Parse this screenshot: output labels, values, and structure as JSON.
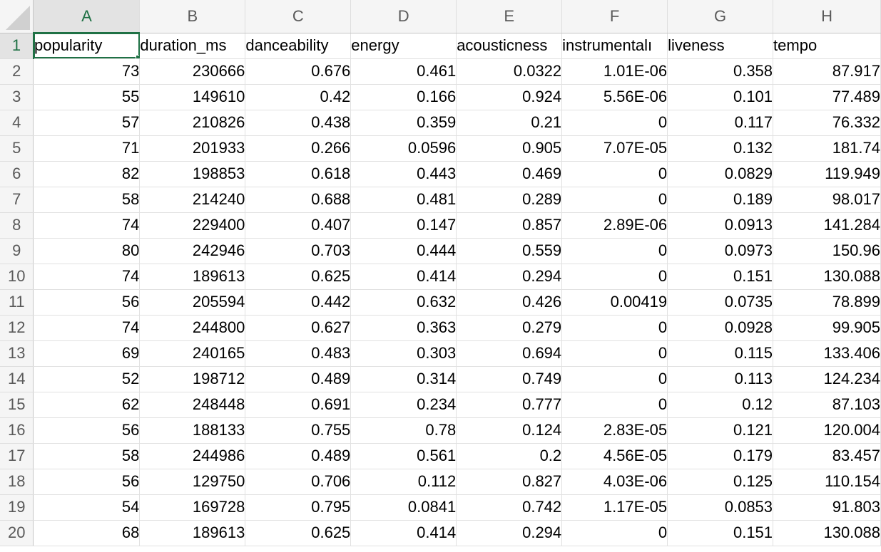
{
  "spreadsheet": {
    "active_cell": "A1",
    "columns": [
      "A",
      "B",
      "C",
      "D",
      "E",
      "F",
      "G",
      "H"
    ],
    "header_row": [
      "popularity",
      "duration_ms",
      "danceability",
      "energy",
      "acousticness",
      "instrumentalı",
      "liveness",
      "tempo"
    ],
    "rows": [
      [
        "2",
        "73",
        "230666",
        "0.676",
        "0.461",
        "0.0322",
        "1.01E-06",
        "0.358",
        "87.917"
      ],
      [
        "3",
        "55",
        "149610",
        "0.42",
        "0.166",
        "0.924",
        "5.56E-06",
        "0.101",
        "77.489"
      ],
      [
        "4",
        "57",
        "210826",
        "0.438",
        "0.359",
        "0.21",
        "0",
        "0.117",
        "76.332"
      ],
      [
        "5",
        "71",
        "201933",
        "0.266",
        "0.0596",
        "0.905",
        "7.07E-05",
        "0.132",
        "181.74"
      ],
      [
        "6",
        "82",
        "198853",
        "0.618",
        "0.443",
        "0.469",
        "0",
        "0.0829",
        "119.949"
      ],
      [
        "7",
        "58",
        "214240",
        "0.688",
        "0.481",
        "0.289",
        "0",
        "0.189",
        "98.017"
      ],
      [
        "8",
        "74",
        "229400",
        "0.407",
        "0.147",
        "0.857",
        "2.89E-06",
        "0.0913",
        "141.284"
      ],
      [
        "9",
        "80",
        "242946",
        "0.703",
        "0.444",
        "0.559",
        "0",
        "0.0973",
        "150.96"
      ],
      [
        "10",
        "74",
        "189613",
        "0.625",
        "0.414",
        "0.294",
        "0",
        "0.151",
        "130.088"
      ],
      [
        "11",
        "56",
        "205594",
        "0.442",
        "0.632",
        "0.426",
        "0.00419",
        "0.0735",
        "78.899"
      ],
      [
        "12",
        "74",
        "244800",
        "0.627",
        "0.363",
        "0.279",
        "0",
        "0.0928",
        "99.905"
      ],
      [
        "13",
        "69",
        "240165",
        "0.483",
        "0.303",
        "0.694",
        "0",
        "0.115",
        "133.406"
      ],
      [
        "14",
        "52",
        "198712",
        "0.489",
        "0.314",
        "0.749",
        "0",
        "0.113",
        "124.234"
      ],
      [
        "15",
        "62",
        "248448",
        "0.691",
        "0.234",
        "0.777",
        "0",
        "0.12",
        "87.103"
      ],
      [
        "16",
        "56",
        "188133",
        "0.755",
        "0.78",
        "0.124",
        "2.83E-05",
        "0.121",
        "120.004"
      ],
      [
        "17",
        "58",
        "244986",
        "0.489",
        "0.561",
        "0.2",
        "4.56E-05",
        "0.179",
        "83.457"
      ],
      [
        "18",
        "56",
        "129750",
        "0.706",
        "0.112",
        "0.827",
        "4.03E-06",
        "0.125",
        "110.154"
      ],
      [
        "19",
        "54",
        "169728",
        "0.795",
        "0.0841",
        "0.742",
        "1.17E-05",
        "0.0853",
        "91.803"
      ],
      [
        "20",
        "68",
        "189613",
        "0.625",
        "0.414",
        "0.294",
        "0",
        "0.151",
        "130.088"
      ]
    ],
    "header_row_number": "1",
    "colors": {
      "selection": "#1f7145",
      "header_bg": "#f5f5f5",
      "gridline": "#e1e1e1"
    }
  }
}
